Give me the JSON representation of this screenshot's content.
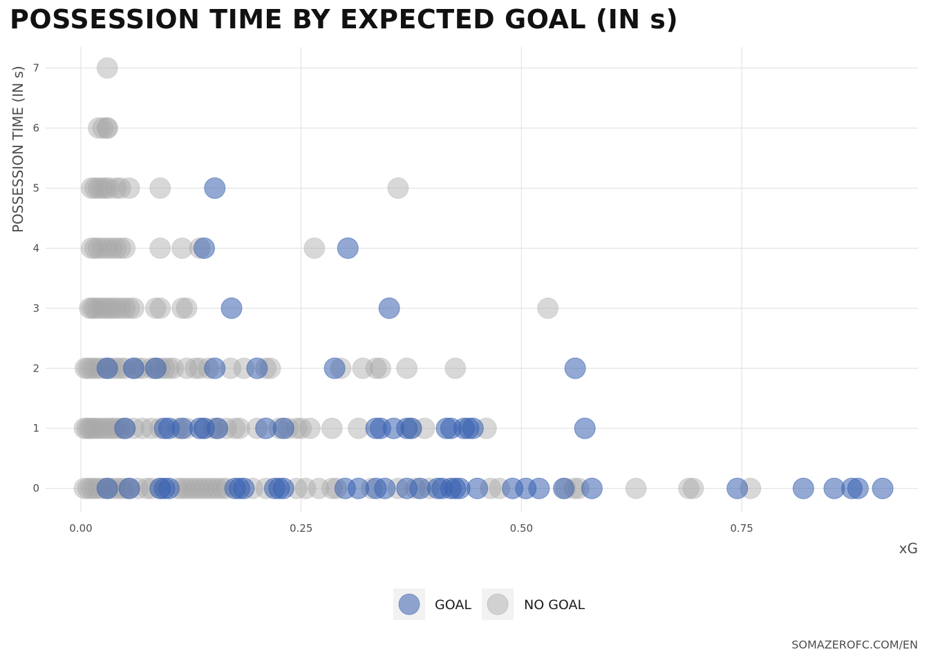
{
  "chart_data": {
    "type": "scatter",
    "title": "POSSESSION TIME BY EXPECTED GOAL (IN s)",
    "xlabel": "xG",
    "ylabel": "POSSESSION TIME (IN s)",
    "xlim": [
      -0.04,
      0.95
    ],
    "ylim": [
      -0.4,
      7.35
    ],
    "x_ticks": [
      0,
      0.25,
      0.5,
      0.75
    ],
    "x_tick_labels": [
      "0.00",
      "0.25",
      "0.50",
      "0.75"
    ],
    "y_ticks": [
      0,
      1,
      2,
      3,
      4,
      5,
      6,
      7
    ],
    "y_tick_labels": [
      "0",
      "1",
      "2",
      "3",
      "4",
      "5",
      "6",
      "7"
    ],
    "grid": true,
    "legend_position": "bottom",
    "caption": "SOMAZEROFC.COM/EN",
    "series": [
      {
        "name": "NO GOAL",
        "color": "#a9a9a9",
        "points": [
          [
            0.03,
            7
          ],
          [
            0.02,
            6
          ],
          [
            0.025,
            6
          ],
          [
            0.03,
            6
          ],
          [
            0.03,
            6
          ],
          [
            0.012,
            5
          ],
          [
            0.016,
            5
          ],
          [
            0.02,
            5
          ],
          [
            0.024,
            5
          ],
          [
            0.028,
            5
          ],
          [
            0.032,
            5
          ],
          [
            0.04,
            5
          ],
          [
            0.045,
            5
          ],
          [
            0.055,
            5
          ],
          [
            0.09,
            5
          ],
          [
            0.36,
            5
          ],
          [
            0.012,
            4
          ],
          [
            0.016,
            4
          ],
          [
            0.02,
            4
          ],
          [
            0.025,
            4
          ],
          [
            0.03,
            4
          ],
          [
            0.035,
            4
          ],
          [
            0.04,
            4
          ],
          [
            0.045,
            4
          ],
          [
            0.05,
            4
          ],
          [
            0.09,
            4
          ],
          [
            0.115,
            4
          ],
          [
            0.135,
            4
          ],
          [
            0.265,
            4
          ],
          [
            0.01,
            3
          ],
          [
            0.013,
            3
          ],
          [
            0.016,
            3
          ],
          [
            0.02,
            3
          ],
          [
            0.024,
            3
          ],
          [
            0.028,
            3
          ],
          [
            0.032,
            3
          ],
          [
            0.036,
            3
          ],
          [
            0.04,
            3
          ],
          [
            0.045,
            3
          ],
          [
            0.05,
            3
          ],
          [
            0.055,
            3
          ],
          [
            0.06,
            3
          ],
          [
            0.085,
            3
          ],
          [
            0.09,
            3
          ],
          [
            0.115,
            3
          ],
          [
            0.12,
            3
          ],
          [
            0.53,
            3
          ],
          [
            0.005,
            2
          ],
          [
            0.008,
            2
          ],
          [
            0.012,
            2
          ],
          [
            0.016,
            2
          ],
          [
            0.02,
            2
          ],
          [
            0.025,
            2
          ],
          [
            0.03,
            2
          ],
          [
            0.035,
            2
          ],
          [
            0.04,
            2
          ],
          [
            0.045,
            2
          ],
          [
            0.05,
            2
          ],
          [
            0.06,
            2
          ],
          [
            0.065,
            2
          ],
          [
            0.07,
            2
          ],
          [
            0.08,
            2
          ],
          [
            0.085,
            2
          ],
          [
            0.09,
            2
          ],
          [
            0.095,
            2
          ],
          [
            0.1,
            2
          ],
          [
            0.105,
            2
          ],
          [
            0.12,
            2
          ],
          [
            0.13,
            2
          ],
          [
            0.135,
            2
          ],
          [
            0.145,
            2
          ],
          [
            0.17,
            2
          ],
          [
            0.185,
            2
          ],
          [
            0.21,
            2
          ],
          [
            0.215,
            2
          ],
          [
            0.295,
            2
          ],
          [
            0.32,
            2
          ],
          [
            0.335,
            2
          ],
          [
            0.34,
            2
          ],
          [
            0.37,
            2
          ],
          [
            0.425,
            2
          ],
          [
            0.004,
            1
          ],
          [
            0.007,
            1
          ],
          [
            0.01,
            1
          ],
          [
            0.013,
            1
          ],
          [
            0.016,
            1
          ],
          [
            0.02,
            1
          ],
          [
            0.024,
            1
          ],
          [
            0.028,
            1
          ],
          [
            0.032,
            1
          ],
          [
            0.036,
            1
          ],
          [
            0.04,
            1
          ],
          [
            0.045,
            1
          ],
          [
            0.05,
            1
          ],
          [
            0.06,
            1
          ],
          [
            0.07,
            1
          ],
          [
            0.08,
            1
          ],
          [
            0.09,
            1
          ],
          [
            0.11,
            1
          ],
          [
            0.12,
            1
          ],
          [
            0.14,
            1
          ],
          [
            0.15,
            1
          ],
          [
            0.155,
            1
          ],
          [
            0.165,
            1
          ],
          [
            0.175,
            1
          ],
          [
            0.18,
            1
          ],
          [
            0.2,
            1
          ],
          [
            0.225,
            1
          ],
          [
            0.235,
            1
          ],
          [
            0.245,
            1
          ],
          [
            0.25,
            1
          ],
          [
            0.26,
            1
          ],
          [
            0.285,
            1
          ],
          [
            0.315,
            1
          ],
          [
            0.375,
            1
          ],
          [
            0.39,
            1
          ],
          [
            0.46,
            1
          ],
          [
            0.004,
            0
          ],
          [
            0.008,
            0
          ],
          [
            0.012,
            0
          ],
          [
            0.016,
            0
          ],
          [
            0.02,
            0
          ],
          [
            0.025,
            0
          ],
          [
            0.03,
            0
          ],
          [
            0.035,
            0
          ],
          [
            0.04,
            0
          ],
          [
            0.045,
            0
          ],
          [
            0.05,
            0
          ],
          [
            0.055,
            0
          ],
          [
            0.065,
            0
          ],
          [
            0.075,
            0
          ],
          [
            0.08,
            0
          ],
          [
            0.09,
            0
          ],
          [
            0.11,
            0
          ],
          [
            0.115,
            0
          ],
          [
            0.12,
            0
          ],
          [
            0.125,
            0
          ],
          [
            0.13,
            0
          ],
          [
            0.135,
            0
          ],
          [
            0.14,
            0
          ],
          [
            0.145,
            0
          ],
          [
            0.15,
            0
          ],
          [
            0.155,
            0
          ],
          [
            0.16,
            0
          ],
          [
            0.165,
            0
          ],
          [
            0.195,
            0
          ],
          [
            0.21,
            0
          ],
          [
            0.245,
            0
          ],
          [
            0.255,
            0
          ],
          [
            0.27,
            0
          ],
          [
            0.285,
            0
          ],
          [
            0.29,
            0
          ],
          [
            0.33,
            0
          ],
          [
            0.36,
            0
          ],
          [
            0.38,
            0
          ],
          [
            0.395,
            0
          ],
          [
            0.465,
            0
          ],
          [
            0.475,
            0
          ],
          [
            0.55,
            0
          ],
          [
            0.56,
            0
          ],
          [
            0.565,
            0
          ],
          [
            0.63,
            0
          ],
          [
            0.69,
            0
          ],
          [
            0.695,
            0
          ],
          [
            0.76,
            0
          ]
        ]
      },
      {
        "name": "GOAL",
        "color": "#3a62b0",
        "points": [
          [
            0.152,
            5
          ],
          [
            0.14,
            4
          ],
          [
            0.303,
            4
          ],
          [
            0.171,
            3
          ],
          [
            0.35,
            3
          ],
          [
            0.03,
            2
          ],
          [
            0.06,
            2
          ],
          [
            0.085,
            2
          ],
          [
            0.152,
            2
          ],
          [
            0.2,
            2
          ],
          [
            0.288,
            2
          ],
          [
            0.561,
            2
          ],
          [
            0.05,
            1
          ],
          [
            0.095,
            1
          ],
          [
            0.1,
            1
          ],
          [
            0.115,
            1
          ],
          [
            0.135,
            1
          ],
          [
            0.14,
            1
          ],
          [
            0.155,
            1
          ],
          [
            0.21,
            1
          ],
          [
            0.23,
            1
          ],
          [
            0.335,
            1
          ],
          [
            0.34,
            1
          ],
          [
            0.355,
            1
          ],
          [
            0.37,
            1
          ],
          [
            0.375,
            1
          ],
          [
            0.415,
            1
          ],
          [
            0.42,
            1
          ],
          [
            0.435,
            1
          ],
          [
            0.44,
            1
          ],
          [
            0.445,
            1
          ],
          [
            0.572,
            1
          ],
          [
            0.03,
            0
          ],
          [
            0.055,
            0
          ],
          [
            0.09,
            0
          ],
          [
            0.095,
            0
          ],
          [
            0.1,
            0
          ],
          [
            0.175,
            0
          ],
          [
            0.18,
            0
          ],
          [
            0.185,
            0
          ],
          [
            0.22,
            0
          ],
          [
            0.225,
            0
          ],
          [
            0.23,
            0
          ],
          [
            0.3,
            0
          ],
          [
            0.315,
            0
          ],
          [
            0.335,
            0
          ],
          [
            0.345,
            0
          ],
          [
            0.37,
            0
          ],
          [
            0.385,
            0
          ],
          [
            0.405,
            0
          ],
          [
            0.41,
            0
          ],
          [
            0.42,
            0
          ],
          [
            0.425,
            0
          ],
          [
            0.43,
            0
          ],
          [
            0.45,
            0
          ],
          [
            0.49,
            0
          ],
          [
            0.505,
            0
          ],
          [
            0.52,
            0
          ],
          [
            0.548,
            0
          ],
          [
            0.58,
            0
          ],
          [
            0.745,
            0
          ],
          [
            0.82,
            0
          ],
          [
            0.855,
            0
          ],
          [
            0.875,
            0
          ],
          [
            0.882,
            0
          ],
          [
            0.91,
            0
          ]
        ]
      }
    ]
  }
}
